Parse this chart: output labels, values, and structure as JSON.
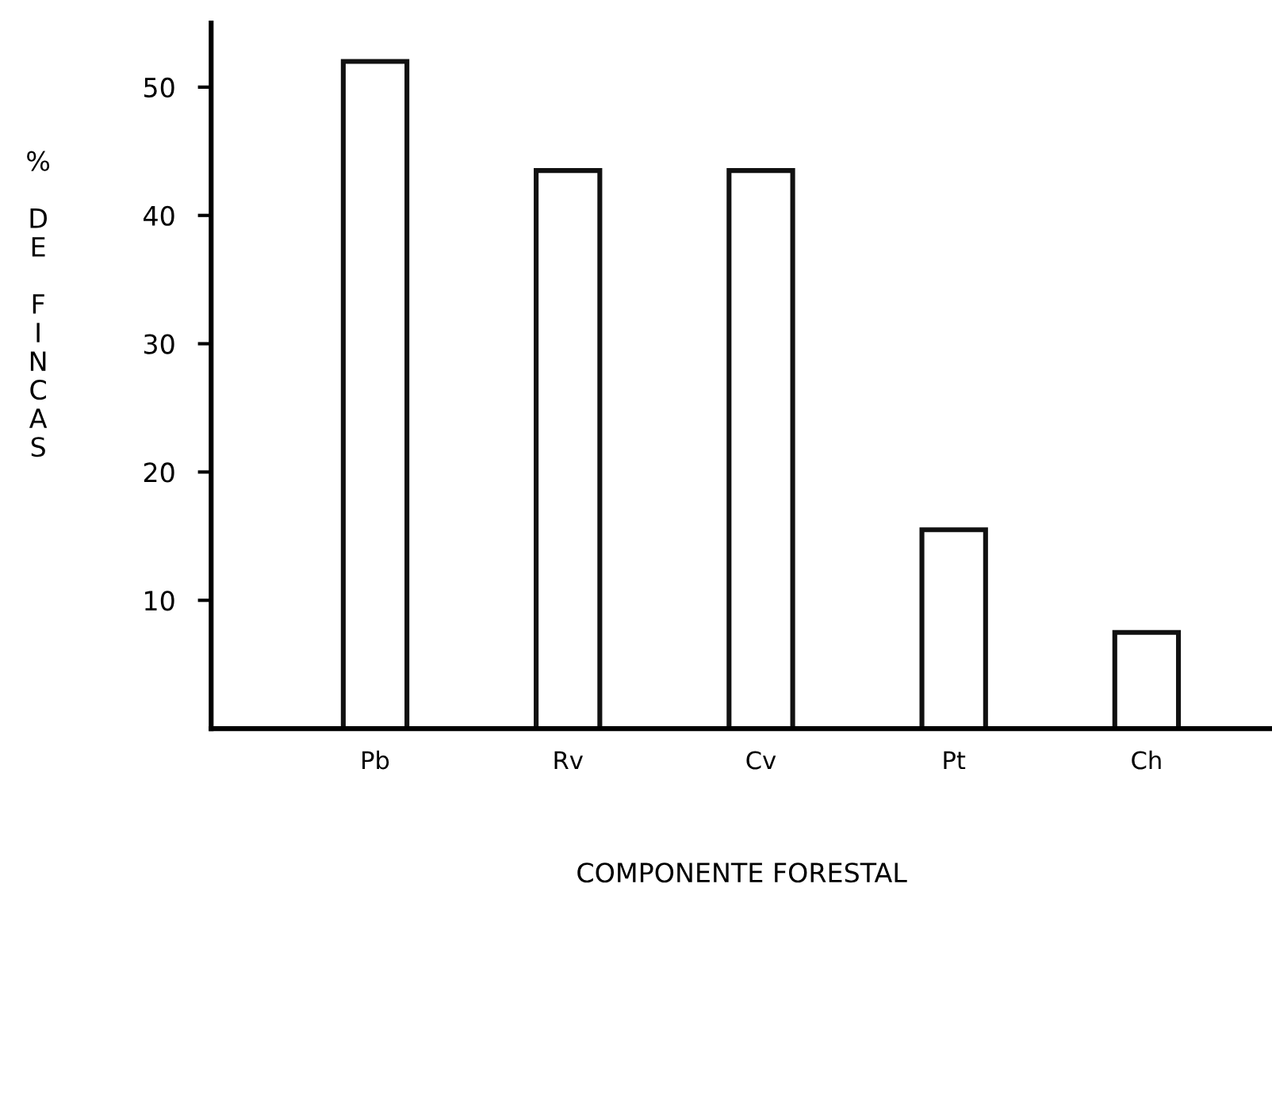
{
  "chart_data": {
    "type": "bar",
    "xlabel": "COMPONENTE FORESTAL",
    "ylabel": "% DE FINCAS",
    "categories": [
      "Pb",
      "Rv",
      "Cv",
      "Pt",
      "Ch"
    ],
    "series": [
      {
        "color": "#ffffff",
        "values": [
          52,
          43.5,
          43.5,
          15.5,
          7.5
        ]
      }
    ],
    "ylim": [
      0,
      55
    ],
    "yticks": [
      10,
      20,
      30,
      40,
      50
    ],
    "grid": false,
    "legend": false
  }
}
